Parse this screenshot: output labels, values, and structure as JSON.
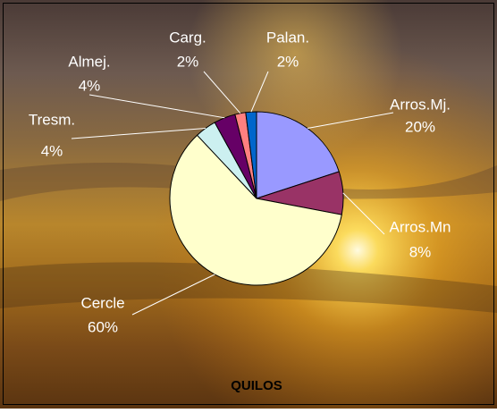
{
  "chart_data": {
    "type": "pie",
    "title": "QUILOS",
    "categories": [
      "Arros.Mj.",
      "Arros.Mn",
      "Cercle",
      "Tresm.",
      "Almej.",
      "Carg.",
      "Palan."
    ],
    "values": [
      20,
      8,
      60,
      4,
      4,
      2,
      2
    ],
    "value_labels": [
      "20%",
      "8%",
      "60%",
      "4%",
      "4%",
      "2%",
      "2%"
    ],
    "colors": [
      "#9999ff",
      "#993366",
      "#ffffcc",
      "#ccf0f0",
      "#660066",
      "#ff8080",
      "#0066cc"
    ]
  }
}
